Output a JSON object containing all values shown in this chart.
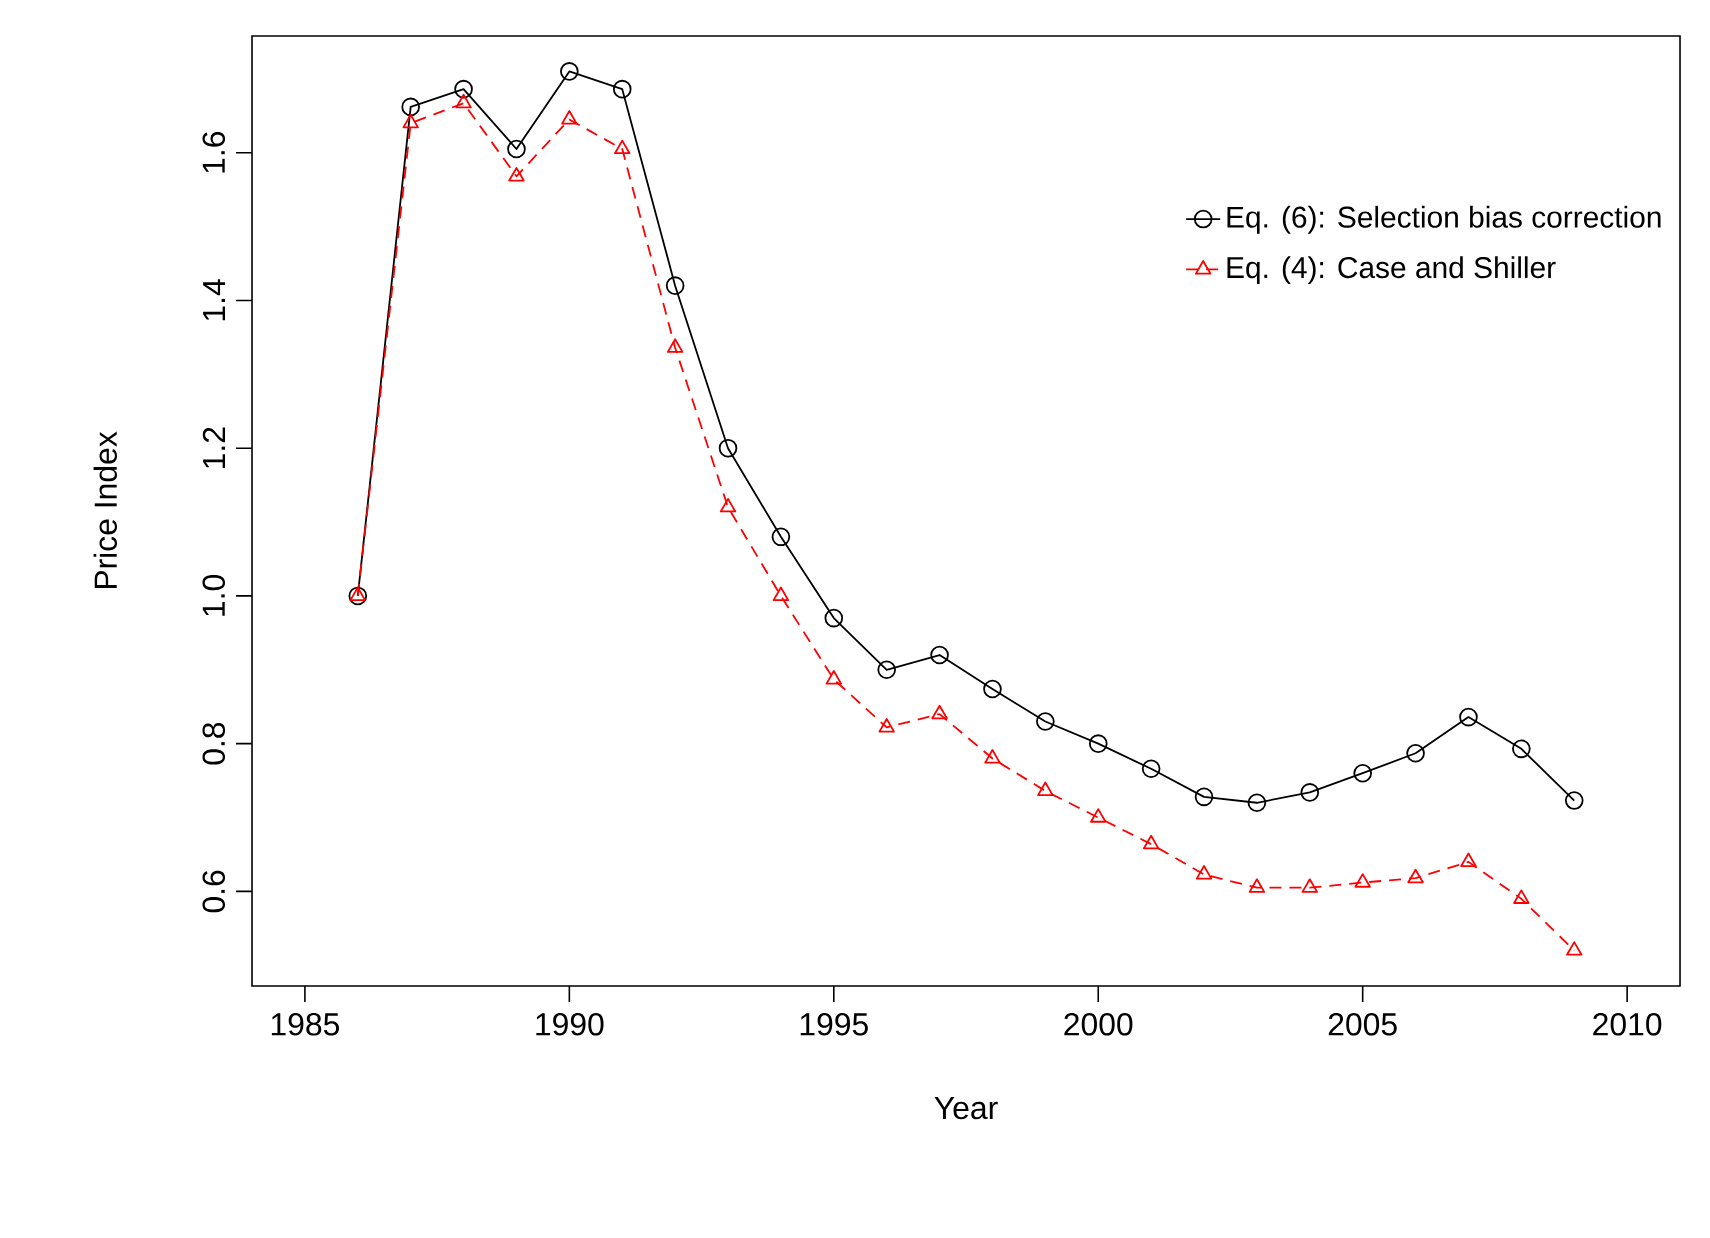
{
  "chart_data": {
    "type": "line",
    "xlabel": "Year",
    "ylabel": "Price Index",
    "x": [
      1986,
      1987,
      1988,
      1989,
      1990,
      1991,
      1992,
      1993,
      1994,
      1995,
      1996,
      1997,
      1998,
      1999,
      2000,
      2001,
      2002,
      2003,
      2004,
      2005,
      2006,
      2007,
      2008,
      2009
    ],
    "series": [
      {
        "name": "Eq. (6): Selection bias correction",
        "color": "#000000",
        "marker": "circle",
        "line_style": "solid",
        "values": [
          1.0,
          1.662,
          1.686,
          1.605,
          1.71,
          1.686,
          1.42,
          1.2,
          1.08,
          0.97,
          0.9,
          0.92,
          0.874,
          0.83,
          0.8,
          0.766,
          0.728,
          0.72,
          0.734,
          0.76,
          0.787,
          0.836,
          0.793,
          0.723
        ]
      },
      {
        "name": "Eq. (4): Case and Shiller",
        "color": "#ff0000",
        "marker": "triangle",
        "line_style": "dashed",
        "values": [
          1.0,
          1.64,
          1.667,
          1.568,
          1.645,
          1.605,
          1.336,
          1.12,
          1.0,
          0.887,
          0.822,
          0.84,
          0.78,
          0.736,
          0.7,
          0.664,
          0.623,
          0.605,
          0.605,
          0.612,
          0.618,
          0.64,
          0.59,
          0.52
        ]
      }
    ],
    "xlim": [
      1984,
      2011
    ],
    "ylim": [
      0.472,
      1.758
    ],
    "xticks": [
      1985,
      1990,
      1995,
      2000,
      2005,
      2010
    ],
    "yticks": [
      {
        "value": 0.6,
        "label": "0.6"
      },
      {
        "value": 0.8,
        "label": "0.8"
      },
      {
        "value": 1.0,
        "label": "1.0"
      },
      {
        "value": 1.2,
        "label": "1.2"
      },
      {
        "value": 1.4,
        "label": "1.4"
      },
      {
        "value": 1.6,
        "label": "1.6"
      }
    ],
    "grid": false,
    "legend": "top right"
  }
}
